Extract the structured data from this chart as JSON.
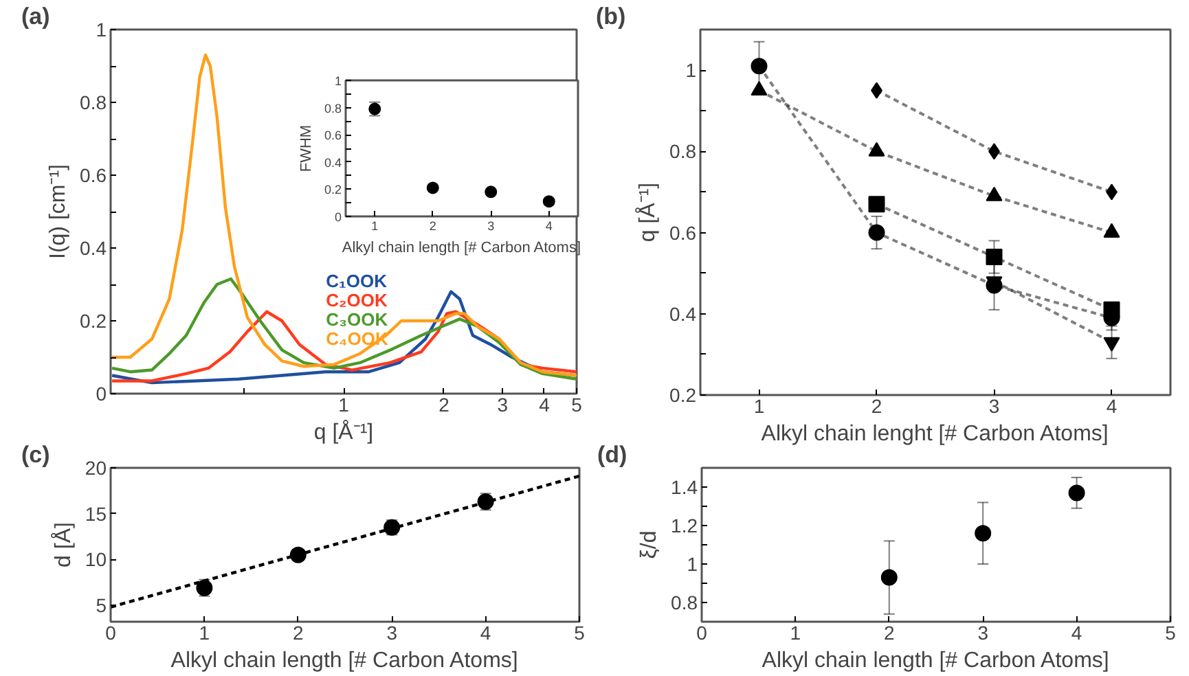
{
  "chart_data": [
    {
      "type": "line",
      "title": "(a)",
      "xlabel": "q [Å⁻¹]",
      "ylabel": "I(q) [cm⁻¹]",
      "log": "x",
      "legend": "right",
      "xlim": [
        0.2,
        5
      ],
      "xticks": [
        {
          "value": 0.5,
          "label": null
        },
        1,
        2,
        3,
        4,
        5
      ],
      "ylim": [
        0,
        1
      ],
      "yticks": [
        0,
        {
          "value": 0.1,
          "label": null
        },
        0.2,
        {
          "value": 0.3,
          "label": null
        },
        0.4,
        {
          "value": 0.5,
          "label": null
        },
        0.6,
        {
          "value": 0.7,
          "label": null
        },
        0.8,
        {
          "value": 0.9,
          "label": null
        },
        1
      ],
      "series": [
        {
          "name": "C₁OOK",
          "color": "#1f4fa0",
          "x": [
            0.202,
            0.266,
            0.359,
            0.484,
            0.653,
            0.882,
            1.19,
            1.47,
            1.76,
            1.92,
            2.1,
            2.23,
            2.44,
            2.76,
            3.2,
            3.95,
            5.0
          ],
          "values": [
            0.05,
            0.03,
            0.035,
            0.04,
            0.05,
            0.06,
            0.06,
            0.085,
            0.15,
            0.21,
            0.28,
            0.26,
            0.16,
            0.135,
            0.1,
            0.06,
            0.05
          ]
        },
        {
          "name": "C₂OOK",
          "color": "#ff3b1f",
          "x": [
            0.202,
            0.266,
            0.337,
            0.393,
            0.456,
            0.514,
            0.588,
            0.653,
            0.737,
            0.882,
            1.06,
            1.38,
            1.71,
            1.92,
            2.04,
            2.17,
            2.52,
            2.93,
            3.4,
            3.95,
            5.0
          ],
          "values": [
            0.035,
            0.035,
            0.055,
            0.07,
            0.115,
            0.17,
            0.225,
            0.2,
            0.135,
            0.08,
            0.065,
            0.085,
            0.115,
            0.17,
            0.22,
            0.225,
            0.19,
            0.15,
            0.08,
            0.07,
            0.06
          ]
        },
        {
          "name": "C₃OOK",
          "color": "#4c9a2a",
          "x": [
            0.202,
            0.229,
            0.266,
            0.3,
            0.337,
            0.381,
            0.417,
            0.459,
            0.499,
            0.562,
            0.653,
            0.759,
            0.936,
            1.12,
            1.38,
            1.71,
            2.04,
            2.23,
            2.52,
            2.93,
            3.4,
            3.95,
            5.0
          ],
          "values": [
            0.07,
            0.06,
            0.065,
            0.11,
            0.16,
            0.25,
            0.3,
            0.315,
            0.27,
            0.2,
            0.12,
            0.085,
            0.07,
            0.085,
            0.12,
            0.16,
            0.19,
            0.205,
            0.185,
            0.14,
            0.08,
            0.055,
            0.04
          ]
        },
        {
          "name": "C₄OOK",
          "color": "#ff9f1a",
          "x": [
            0.202,
            0.229,
            0.266,
            0.3,
            0.328,
            0.353,
            0.37,
            0.385,
            0.398,
            0.417,
            0.442,
            0.47,
            0.514,
            0.58,
            0.653,
            0.759,
            0.936,
            1.12,
            1.34,
            1.49,
            1.71,
            1.92,
            2.17,
            2.3,
            2.52,
            2.93,
            3.4,
            3.95,
            5.0
          ],
          "values": [
            0.1,
            0.1,
            0.15,
            0.26,
            0.45,
            0.7,
            0.87,
            0.93,
            0.9,
            0.76,
            0.51,
            0.35,
            0.21,
            0.135,
            0.09,
            0.075,
            0.08,
            0.11,
            0.16,
            0.2,
            0.2,
            0.2,
            0.22,
            0.22,
            0.185,
            0.15,
            0.085,
            0.06,
            0.05
          ]
        }
      ]
    },
    {
      "type": "scatter",
      "xlabel": "Alkyl chain length [# Carbon Atoms]",
      "ylabel": "FWHM",
      "marker": "circle",
      "x": [
        1,
        2,
        3,
        4
      ],
      "values": [
        0.79,
        0.21,
        0.18,
        0.11
      ],
      "errors": [
        0.05,
        null,
        null,
        null
      ],
      "color": "#000000",
      "xlim": [
        0.5,
        4.5
      ],
      "xticks": [
        1,
        2,
        3,
        4
      ],
      "ylim": [
        0,
        1
      ],
      "yticks": [
        0,
        {
          "value": 0.1,
          "label": null
        },
        0.2,
        {
          "value": 0.3,
          "label": null
        },
        0.4,
        {
          "value": 0.5,
          "label": null
        },
        0.6,
        {
          "value": 0.7,
          "label": null
        },
        0.8,
        {
          "value": 0.9,
          "label": null
        },
        1
      ]
    },
    {
      "type": "line",
      "title": "(b)",
      "xlabel": "Alkyl chain lenght [# Carbon Atoms]",
      "ylabel": "q [Å⁻¹]",
      "line_style": "dashed",
      "x": [
        1,
        2,
        3,
        4
      ],
      "xlim": [
        0.5,
        4.5
      ],
      "xticks": [
        1,
        2,
        3,
        4
      ],
      "ylim": [
        0.2,
        1.1
      ],
      "yticks": [
        0.2,
        {
          "value": 0.3,
          "label": null
        },
        0.4,
        {
          "value": 0.5,
          "label": null
        },
        0.6,
        {
          "value": 0.7,
          "label": null
        },
        0.8,
        {
          "value": 0.9,
          "label": null
        },
        1
      ],
      "series": [
        {
          "color": "#000000",
          "marker": "diamond",
          "values": [
            null,
            0.95,
            0.8,
            0.7
          ]
        },
        {
          "color": "#000000",
          "marker": "triangle",
          "values": [
            0.95,
            0.8,
            0.69,
            0.6
          ]
        },
        {
          "color": "#000000",
          "marker": "square",
          "values": [
            null,
            0.67,
            0.54,
            0.41
          ],
          "errors": [
            null,
            null,
            0.04,
            null
          ]
        },
        {
          "color": "#000000",
          "marker": "circle",
          "values": [
            1.01,
            0.6,
            0.47,
            0.39
          ],
          "errors": [
            0.06,
            0.04,
            0.06,
            0.03
          ]
        },
        {
          "color": "#000000",
          "marker": "triangle_down",
          "values": [
            null,
            null,
            0.48,
            0.33
          ],
          "errors": [
            null,
            null,
            null,
            0.04
          ]
        }
      ]
    },
    {
      "type": "scatter",
      "title": "(c)",
      "xlabel": "Alkyl chain length [# Carbon Atoms]",
      "ylabel": "d [Å]",
      "xlim": [
        0,
        5
      ],
      "xticks": [
        0,
        1,
        2,
        3,
        4,
        5
      ],
      "ylim": [
        3.2,
        20
      ],
      "yticks": [
        5,
        10,
        15,
        20
      ],
      "series": [
        {
          "color": "#000000",
          "marker": "circle",
          "x": [
            1,
            2,
            3,
            4
          ],
          "values": [
            6.9,
            10.5,
            13.5,
            16.3
          ],
          "errors": [
            0.9,
            0.4,
            0.8,
            0.9
          ]
        },
        {
          "type": "line",
          "line_style": "dashed",
          "color": "#000000",
          "x": [
            0,
            5
          ],
          "values": [
            4.8,
            19.1
          ]
        }
      ]
    },
    {
      "type": "scatter",
      "title": "(d)",
      "xlabel": "Alkyl chain length [# Carbon Atoms]",
      "ylabel": "ξ/d",
      "marker": "circle",
      "x": [
        2,
        3,
        4
      ],
      "values": [
        0.93,
        1.16,
        1.37
      ],
      "errors": [
        0.19,
        0.16,
        0.08
      ],
      "color": "#000000",
      "xlim": [
        0,
        5
      ],
      "xticks": [
        0,
        1,
        2,
        3,
        4,
        5
      ],
      "ylim": [
        0.7,
        1.5
      ],
      "yticks": [
        0.8,
        {
          "value": 0.9,
          "label": null
        },
        1,
        {
          "value": 1.1,
          "label": null
        },
        1.2,
        {
          "value": 1.3,
          "label": null
        },
        1.4
      ]
    }
  ]
}
